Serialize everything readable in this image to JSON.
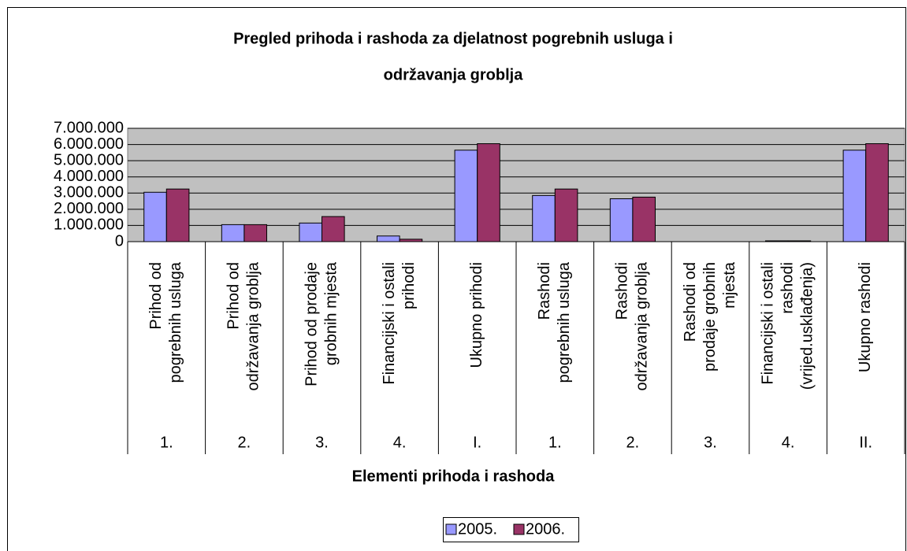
{
  "chart_data": {
    "type": "bar",
    "title": [
      "Pregled prihoda i rashoda za djelatnost pogrebnih usluga i",
      "održavanja groblja"
    ],
    "x_label": "Elementi prihoda i rashoda",
    "categories": [
      [
        "Prihod od",
        "pogrebnih usluga"
      ],
      [
        "Prihod od",
        "održavanja groblja"
      ],
      [
        "Prihod od prodaje",
        "grobnih mjesta"
      ],
      [
        "Financijski i ostali",
        "prihodi"
      ],
      [
        "Ukupno prihodi"
      ],
      [
        "Rashodi",
        "pogrebnih usluga"
      ],
      [
        "Rashodi",
        "održavanja groblja"
      ],
      [
        "Rashodi od",
        "prodaje grobnih",
        "mjesta"
      ],
      [
        "Financijski i ostali",
        "rashodi",
        "(vrijed.usklađenja)"
      ],
      [
        "Ukupno rashodi"
      ]
    ],
    "groups": [
      "1.",
      "2.",
      "3.",
      "4.",
      "I.",
      "1.",
      "2.",
      "3.",
      "4.",
      "II."
    ],
    "series": [
      {
        "name": "2005.",
        "color": "#9999ff",
        "values": [
          3050000,
          1050000,
          1150000,
          350000,
          5650000,
          2850000,
          2650000,
          0,
          50000,
          5650000
        ]
      },
      {
        "name": "2006.",
        "color": "#993366",
        "values": [
          3250000,
          1050000,
          1550000,
          150000,
          6050000,
          3250000,
          2750000,
          0,
          50000,
          6050000
        ]
      }
    ],
    "ylim": [
      0,
      7000000
    ],
    "yticks": [
      0,
      {
        "value": 1000000,
        "label": "1.000.000"
      },
      {
        "value": 2000000,
        "label": "2.000.000"
      },
      {
        "value": 3000000,
        "label": "3.000.000"
      },
      {
        "value": 4000000,
        "label": "4.000.000"
      },
      {
        "value": 5000000,
        "label": "5.000.000"
      },
      {
        "value": 6000000,
        "label": "6.000.000"
      },
      {
        "value": 7000000,
        "label": "7.000.000"
      }
    ],
    "grid": true
  }
}
